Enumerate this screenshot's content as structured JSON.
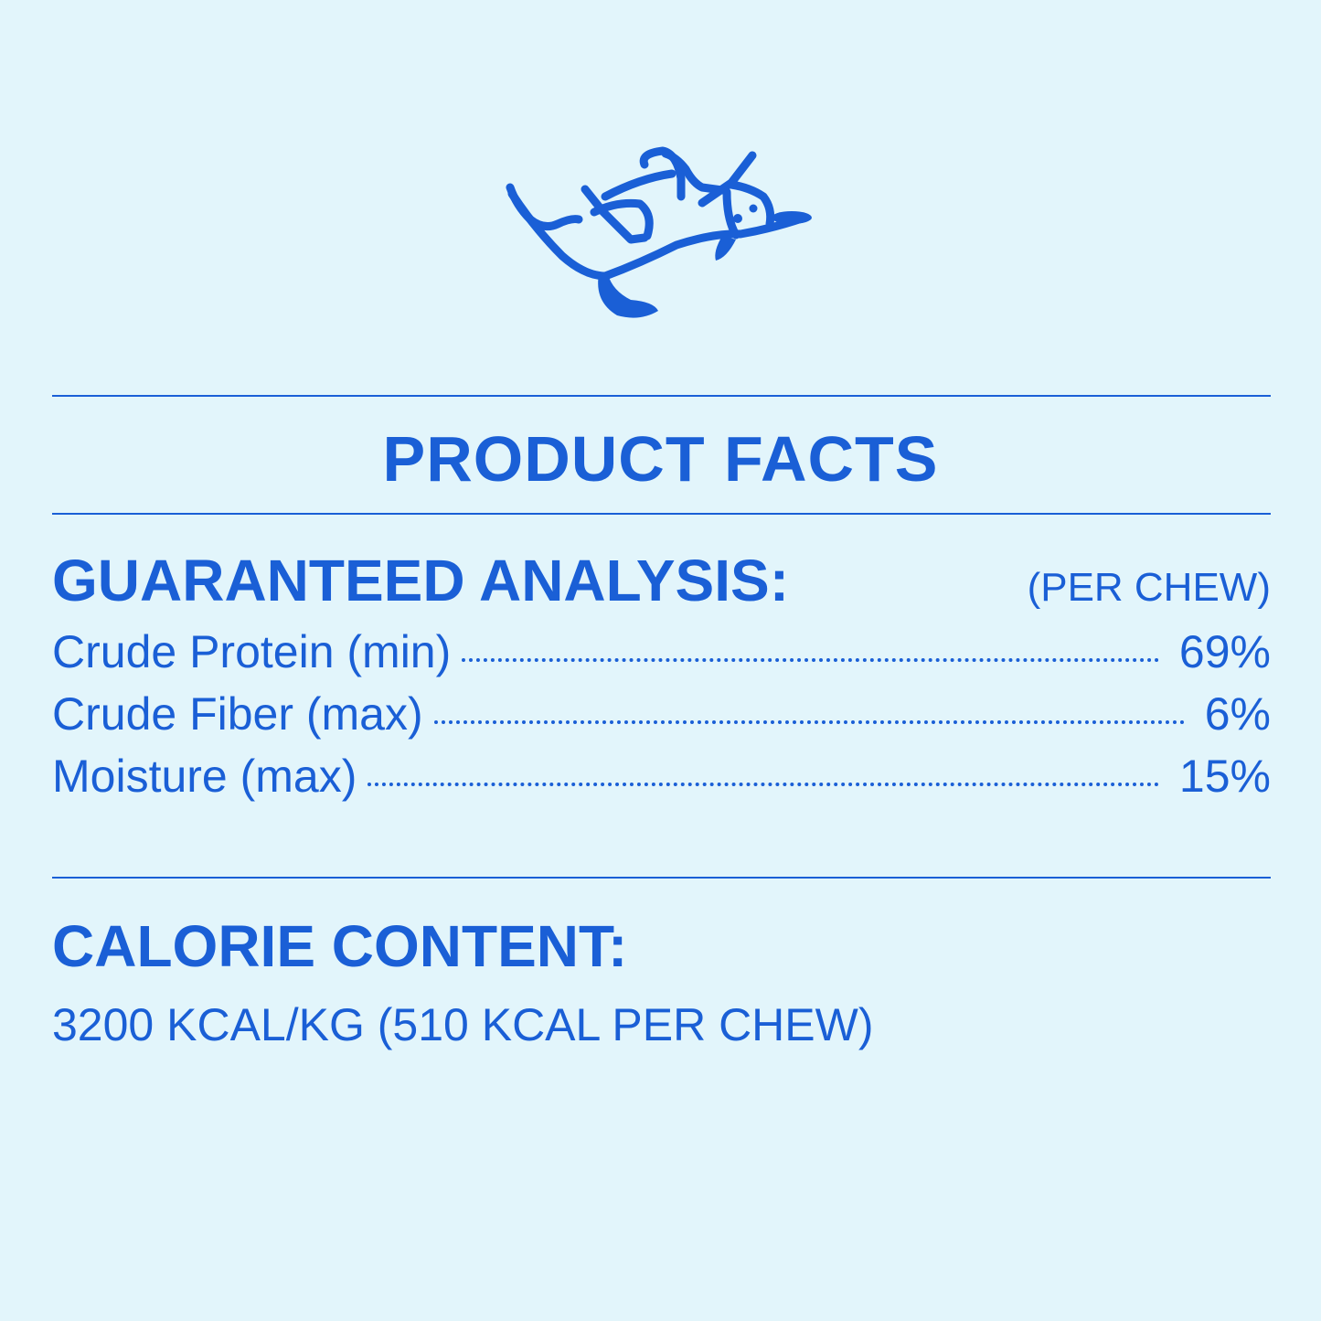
{
  "colors": {
    "accent": "#1a5fd6",
    "background": "#e2f5fb"
  },
  "illustration": "dog-lying-on-back-icon",
  "title": "PRODUCT FACTS",
  "guaranteed_analysis": {
    "heading": "GUARANTEED ANALYSIS:",
    "unit": "(PER CHEW)",
    "rows": [
      {
        "label": "Crude Protein (min)",
        "value": "69%"
      },
      {
        "label": "Crude Fiber (max)",
        "value": "6%"
      },
      {
        "label": "Moisture (max)",
        "value": "15%"
      }
    ]
  },
  "calorie_content": {
    "heading": "CALORIE CONTENT:",
    "text": "3200 KCAL/KG (510 KCAL PER CHEW)"
  }
}
